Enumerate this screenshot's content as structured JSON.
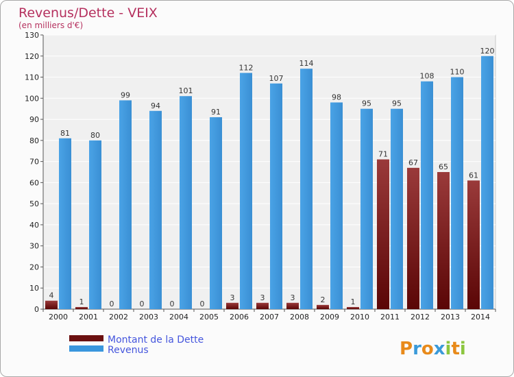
{
  "chart_data": {
    "type": "bar",
    "title": "Revenus/Dette - VEIX",
    "subtitle": "(en milliers d'€)",
    "categories": [
      "2000",
      "2001",
      "2002",
      "2003",
      "2004",
      "2005",
      "2006",
      "2007",
      "2008",
      "2009",
      "2010",
      "2011",
      "2012",
      "2013",
      "2014"
    ],
    "series": [
      {
        "name": "Montant de la Dette",
        "color": "#7a1c1c",
        "values": [
          4,
          1,
          0,
          0,
          0,
          0,
          3,
          3,
          3,
          2,
          1,
          71,
          67,
          65,
          61
        ]
      },
      {
        "name": "Revenus",
        "color": "#3a96dd",
        "values": [
          81,
          80,
          99,
          94,
          101,
          91,
          112,
          107,
          114,
          98,
          95,
          95,
          108,
          110,
          120
        ]
      }
    ],
    "yticks": [
      0,
      10,
      20,
      30,
      40,
      50,
      60,
      70,
      80,
      90,
      100,
      110,
      120,
      130
    ],
    "ylim": [
      0,
      130
    ],
    "grid": true,
    "legend_position": "bottom-left"
  },
  "logo": {
    "letters": [
      "P",
      "r",
      "o",
      "x",
      "i",
      "t",
      "i"
    ],
    "colors": [
      "#e88a1a",
      "#3a9ad9",
      "#e88a1a",
      "#3a9ad9",
      "#8cc63f",
      "#e88a1a",
      "#8cc63f"
    ]
  }
}
